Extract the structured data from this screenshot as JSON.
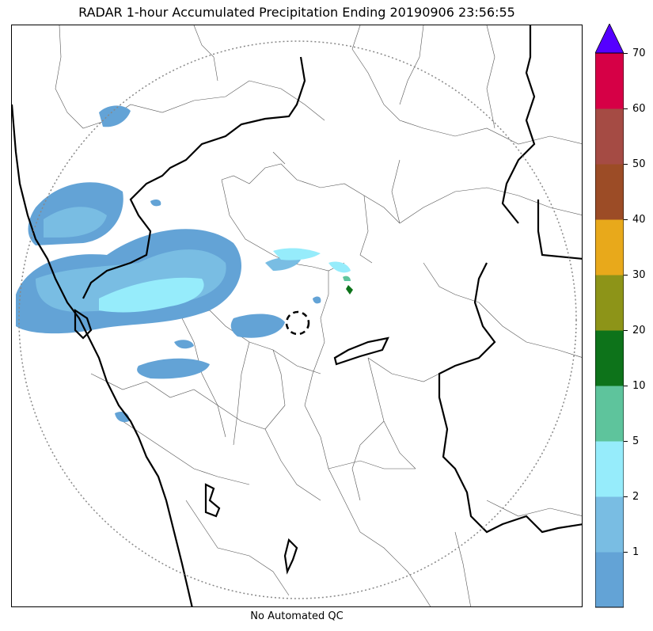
{
  "title": "RADAR 1-hour Accumulated Precipitation Ending 20190906 23:56:55",
  "footer_note": "No Automated QC",
  "colorbar": {
    "ticks": [
      "1",
      "2",
      "5",
      "10",
      "20",
      "30",
      "40",
      "50",
      "60",
      "70"
    ],
    "bands": [
      {
        "label": "0-1",
        "color": "#63a3d6"
      },
      {
        "label": "1-2",
        "color": "#79bde3"
      },
      {
        "label": "2-5",
        "color": "#96ecfb"
      },
      {
        "label": "5-10",
        "color": "#5ec49c"
      },
      {
        "label": "10-20",
        "color": "#0d731a"
      },
      {
        "label": "20-30",
        "color": "#8d9418"
      },
      {
        "label": "30-40",
        "color": "#e8a91b"
      },
      {
        "label": "40-50",
        "color": "#9c4c26"
      },
      {
        "label": "50-60",
        "color": "#a54b44"
      },
      {
        "label": "60-70",
        "color": "#d60046"
      }
    ],
    "extend_color": "#5500ff"
  },
  "map": {
    "range_ring": "dotted",
    "radar_site_marker": "dashed circle",
    "coastline_color": "#000000",
    "district_border_color": "#555555"
  }
}
